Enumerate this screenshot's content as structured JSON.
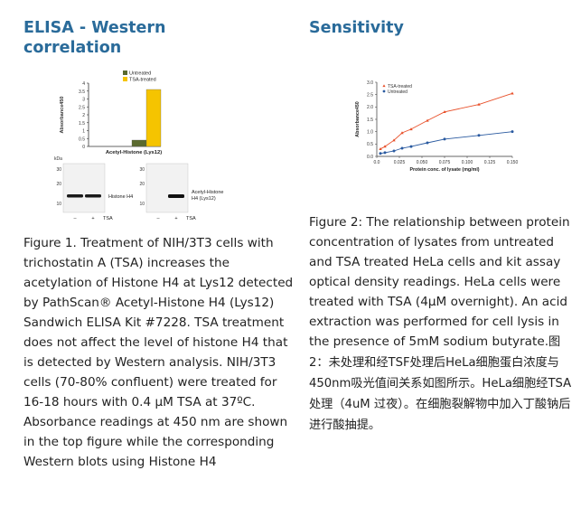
{
  "left": {
    "heading": "ELISA - Western correlation",
    "caption": "Figure 1. Treatment of NIH/3T3 cells with trichostatin A (TSA) increases the acetylation of Histone H4 at Lys12 detected by PathScan® Acetyl-Histone H4 (Lys12) Sandwich ELISA Kit #7228. TSA treatment does not affect the level of histone H4 that is detected by Western analysis. NIH/3T3 cells (70-80% confluent) were treated for 16-18 hours with 0.4 μM TSA at 37ºC. Absorbance readings at 450 nm are shown in the top figure while the corresponding Western blots using Histone H4",
    "figure": {
      "chart_data": {
        "type": "bar",
        "categories": [
          "Acetyl-Histone (Lys12)"
        ],
        "series": [
          {
            "name": "Untreated",
            "values": [
              0.4
            ],
            "color": "#5a6a2e"
          },
          {
            "name": "TSA-treated",
            "values": [
              3.6
            ],
            "color": "#f5c400"
          }
        ],
        "xlabel": "Acetyl-Histone (Lys12)",
        "ylabel": "Absorbance450",
        "ylim": [
          0,
          4
        ],
        "yticks": [
          "0",
          "0.5",
          "1",
          "1.5",
          "2",
          "2.5",
          "3",
          "3.5",
          "4"
        ],
        "legend": "top"
      },
      "blot": {
        "kda_label": "kDa",
        "markers": [
          "30",
          "20",
          "10"
        ],
        "band_label_1": "Histone H4",
        "band_label_2a": "Acetyl-Histone",
        "band_label_2b": "H4 (Lys12)",
        "lane_minus": "–",
        "lane_plus": "+",
        "tsa_label": "TSA"
      }
    }
  },
  "right": {
    "heading": "Sensitivity",
    "caption_en": "Figure 2: The relationship between protein concentration of lysates from untreated and TSA treated HeLa cells and kit assay optical density readings. HeLa cells were treated with TSA (4μM overnight). An acid extraction was performed for cell lysis in the presence of 5mM sodium butyrate.",
    "caption_cn": "图2：未处理和经TSF处理后HeLa细胞蛋白浓度与450nm吸光值间关系如图所示。HeLa细胞经TSA处理（4uM 过夜）。在细胞裂解物中加入丁酸钠后进行酸抽提。",
    "chart_data": {
      "type": "line",
      "xlabel": "Protein conc. of lysate (mg/ml)",
      "ylabel": "Absorbance450",
      "xlim": [
        0,
        0.15
      ],
      "ylim": [
        0,
        3.0
      ],
      "xticks": [
        "0.0",
        "0.025",
        "0.050",
        "0.075",
        "0.100",
        "0.125",
        "0.150"
      ],
      "yticks": [
        "0.0",
        "0.5",
        "1.0",
        "1.5",
        "2.0",
        "2.5",
        "3.0"
      ],
      "legend": "top-left",
      "series": [
        {
          "name": "TSA-treated",
          "color": "#e8502a",
          "marker": "triangle",
          "x": [
            0.004,
            0.009,
            0.019,
            0.028,
            0.038,
            0.056,
            0.075,
            0.113,
            0.15
          ],
          "y": [
            0.3,
            0.4,
            0.65,
            0.95,
            1.1,
            1.45,
            1.8,
            2.1,
            2.55
          ]
        },
        {
          "name": "Untreated",
          "color": "#2a5aa0",
          "marker": "circle",
          "x": [
            0.004,
            0.009,
            0.019,
            0.028,
            0.038,
            0.056,
            0.075,
            0.113,
            0.15
          ],
          "y": [
            0.12,
            0.15,
            0.22,
            0.33,
            0.4,
            0.55,
            0.7,
            0.85,
            1.0
          ]
        }
      ]
    }
  }
}
